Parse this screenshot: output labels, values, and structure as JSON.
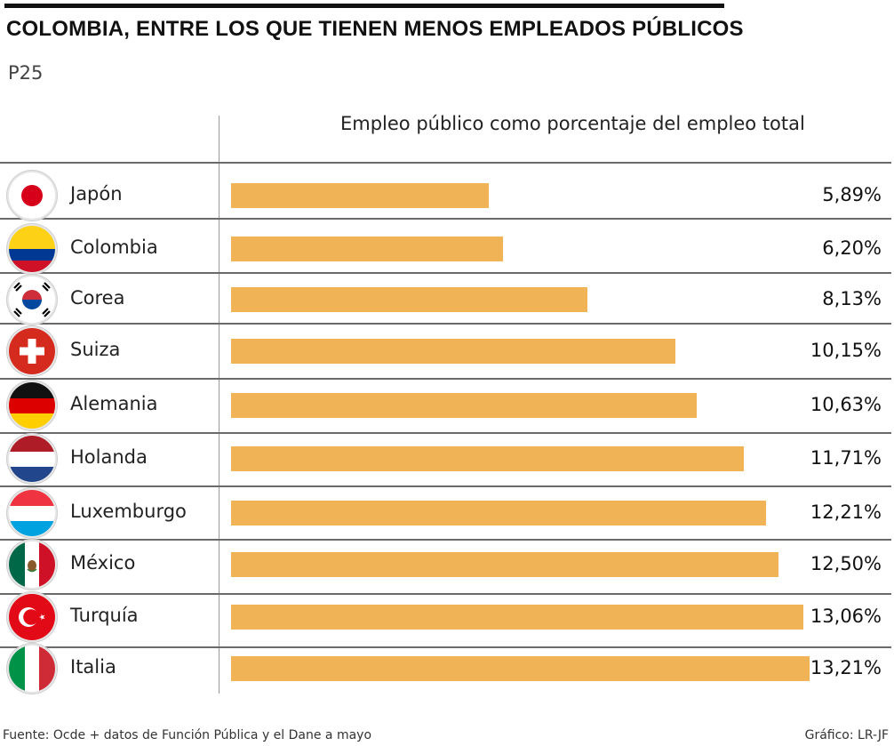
{
  "header": {
    "title": "COLOMBIA, ENTRE LOS QUE TIENEN MENOS EMPLEADOS PÚBLICOS",
    "subtitle": "P25"
  },
  "footer": {
    "source": "Fuente: Ocde + datos de Función Pública y el Dane a mayo",
    "credit": "Gráfico: LR-JF"
  },
  "colors": {
    "bar": "#f0b356",
    "rule": "#111111",
    "divider": "#6a6a6a"
  },
  "chart_data": {
    "type": "bar",
    "orientation": "horizontal",
    "title": "Empleo público como porcentaje del empleo total",
    "categories": [
      "Japón",
      "Colombia",
      "Corea",
      "Suiza",
      "Alemania",
      "Holanda",
      "Luxemburgo",
      "México",
      "Turquía",
      "Italia"
    ],
    "values": [
      5.89,
      6.2,
      8.13,
      10.15,
      10.63,
      11.71,
      12.21,
      12.5,
      13.06,
      13.21
    ],
    "value_labels": [
      "5,89%",
      "6,20%",
      "8,13%",
      "10,15%",
      "10,63%",
      "11,71%",
      "12,21%",
      "12,50%",
      "13,06%",
      "13,21%"
    ],
    "flag_icons": [
      "japan-flag-icon",
      "colombia-flag-icon",
      "korea-flag-icon",
      "switzerland-flag-icon",
      "germany-flag-icon",
      "netherlands-flag-icon",
      "luxembourg-flag-icon",
      "mexico-flag-icon",
      "turkey-flag-icon",
      "italy-flag-icon"
    ],
    "grid": false,
    "legend": "none"
  }
}
